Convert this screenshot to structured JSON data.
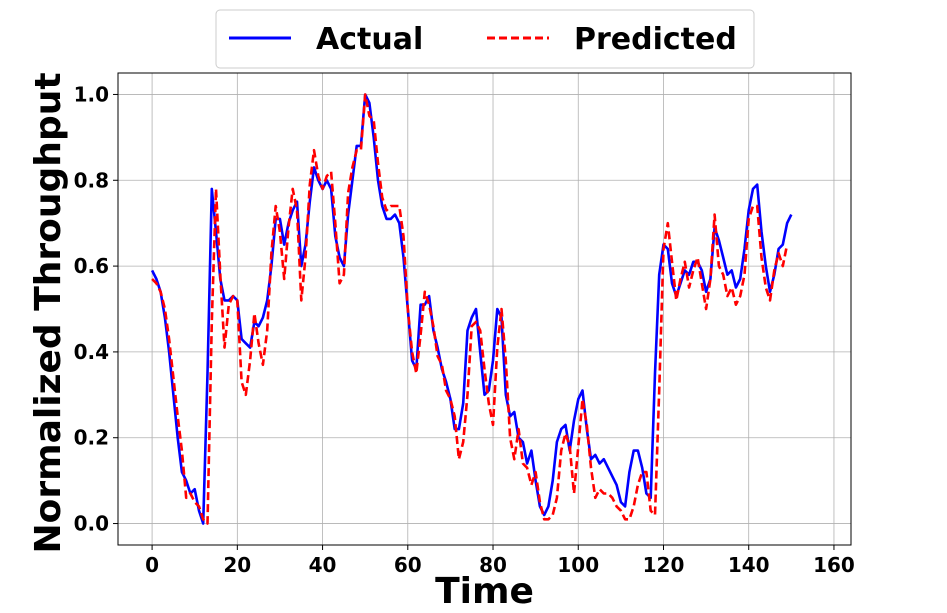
{
  "chart_data": {
    "type": "line",
    "title": "",
    "xlabel": "Time",
    "ylabel": "Normalized Throughput",
    "xlim": [
      -8,
      164
    ],
    "ylim": [
      -0.05,
      1.05
    ],
    "x_ticks": [
      0,
      20,
      40,
      60,
      80,
      100,
      120,
      140,
      160
    ],
    "x_tick_labels": [
      "0",
      "20",
      "40",
      "60",
      "80",
      "100",
      "120",
      "140",
      "160"
    ],
    "y_ticks": [
      0.0,
      0.2,
      0.4,
      0.6,
      0.8,
      1.0
    ],
    "y_tick_labels": [
      "0.0",
      "0.2",
      "0.4",
      "0.6",
      "0.8",
      "1.0"
    ],
    "grid": true,
    "legend_position": "top-center",
    "series": [
      {
        "name": "Actual",
        "color": "#0000ff",
        "style": "solid",
        "points": [
          [
            0,
            0.59
          ],
          [
            1,
            0.57
          ],
          [
            2,
            0.54
          ],
          [
            3,
            0.48
          ],
          [
            4,
            0.4
          ],
          [
            5,
            0.3
          ],
          [
            6,
            0.2
          ],
          [
            7,
            0.12
          ],
          [
            8,
            0.1
          ],
          [
            9,
            0.07
          ],
          [
            10,
            0.08
          ],
          [
            11,
            0.03
          ],
          [
            12,
            0.0
          ],
          [
            13,
            0.35
          ],
          [
            14,
            0.78
          ],
          [
            15,
            0.68
          ],
          [
            16,
            0.57
          ],
          [
            17,
            0.52
          ],
          [
            18,
            0.52
          ],
          [
            19,
            0.53
          ],
          [
            20,
            0.52
          ],
          [
            21,
            0.43
          ],
          [
            22,
            0.42
          ],
          [
            23,
            0.41
          ],
          [
            24,
            0.47
          ],
          [
            25,
            0.46
          ],
          [
            26,
            0.48
          ],
          [
            27,
            0.52
          ],
          [
            28,
            0.6
          ],
          [
            29,
            0.71
          ],
          [
            30,
            0.71
          ],
          [
            31,
            0.65
          ],
          [
            32,
            0.7
          ],
          [
            33,
            0.73
          ],
          [
            34,
            0.75
          ],
          [
            35,
            0.6
          ],
          [
            36,
            0.65
          ],
          [
            37,
            0.75
          ],
          [
            38,
            0.83
          ],
          [
            39,
            0.8
          ],
          [
            40,
            0.78
          ],
          [
            41,
            0.8
          ],
          [
            42,
            0.78
          ],
          [
            43,
            0.67
          ],
          [
            44,
            0.62
          ],
          [
            45,
            0.6
          ],
          [
            46,
            0.72
          ],
          [
            47,
            0.8
          ],
          [
            48,
            0.88
          ],
          [
            49,
            0.88
          ],
          [
            50,
            1.0
          ],
          [
            51,
            0.98
          ],
          [
            52,
            0.9
          ],
          [
            53,
            0.8
          ],
          [
            54,
            0.74
          ],
          [
            55,
            0.71
          ],
          [
            56,
            0.71
          ],
          [
            57,
            0.72
          ],
          [
            58,
            0.7
          ],
          [
            59,
            0.62
          ],
          [
            60,
            0.5
          ],
          [
            61,
            0.38
          ],
          [
            62,
            0.36
          ],
          [
            63,
            0.51
          ],
          [
            64,
            0.51
          ],
          [
            65,
            0.53
          ],
          [
            66,
            0.45
          ],
          [
            67,
            0.41
          ],
          [
            68,
            0.36
          ],
          [
            69,
            0.33
          ],
          [
            70,
            0.29
          ],
          [
            71,
            0.22
          ],
          [
            72,
            0.22
          ],
          [
            73,
            0.28
          ],
          [
            74,
            0.45
          ],
          [
            75,
            0.48
          ],
          [
            76,
            0.5
          ],
          [
            77,
            0.4
          ],
          [
            78,
            0.3
          ],
          [
            79,
            0.31
          ],
          [
            80,
            0.38
          ],
          [
            81,
            0.5
          ],
          [
            82,
            0.48
          ],
          [
            83,
            0.3
          ],
          [
            84,
            0.25
          ],
          [
            85,
            0.26
          ],
          [
            86,
            0.2
          ],
          [
            87,
            0.19
          ],
          [
            88,
            0.14
          ],
          [
            89,
            0.17
          ],
          [
            90,
            0.1
          ],
          [
            91,
            0.04
          ],
          [
            92,
            0.02
          ],
          [
            93,
            0.04
          ],
          [
            94,
            0.1
          ],
          [
            95,
            0.19
          ],
          [
            96,
            0.22
          ],
          [
            97,
            0.23
          ],
          [
            98,
            0.17
          ],
          [
            99,
            0.24
          ],
          [
            100,
            0.29
          ],
          [
            101,
            0.31
          ],
          [
            102,
            0.22
          ],
          [
            103,
            0.15
          ],
          [
            104,
            0.16
          ],
          [
            105,
            0.14
          ],
          [
            106,
            0.15
          ],
          [
            107,
            0.13
          ],
          [
            108,
            0.11
          ],
          [
            109,
            0.09
          ],
          [
            110,
            0.05
          ],
          [
            111,
            0.04
          ],
          [
            112,
            0.12
          ],
          [
            113,
            0.17
          ],
          [
            114,
            0.17
          ],
          [
            115,
            0.13
          ],
          [
            116,
            0.07
          ],
          [
            117,
            0.06
          ],
          [
            118,
            0.35
          ],
          [
            119,
            0.58
          ],
          [
            120,
            0.65
          ],
          [
            121,
            0.64
          ],
          [
            122,
            0.56
          ],
          [
            123,
            0.53
          ],
          [
            124,
            0.56
          ],
          [
            125,
            0.59
          ],
          [
            126,
            0.58
          ],
          [
            127,
            0.61
          ],
          [
            128,
            0.61
          ],
          [
            129,
            0.59
          ],
          [
            130,
            0.54
          ],
          [
            131,
            0.57
          ],
          [
            132,
            0.69
          ],
          [
            133,
            0.66
          ],
          [
            134,
            0.62
          ],
          [
            135,
            0.58
          ],
          [
            136,
            0.59
          ],
          [
            137,
            0.55
          ],
          [
            138,
            0.57
          ],
          [
            139,
            0.64
          ],
          [
            140,
            0.73
          ],
          [
            141,
            0.78
          ],
          [
            142,
            0.79
          ],
          [
            143,
            0.68
          ],
          [
            144,
            0.6
          ],
          [
            145,
            0.54
          ],
          [
            146,
            0.58
          ],
          [
            147,
            0.64
          ],
          [
            148,
            0.65
          ],
          [
            149,
            0.7
          ],
          [
            150,
            0.72
          ]
        ]
      },
      {
        "name": "Predicted",
        "color": "#ff0000",
        "style": "dashed",
        "points": [
          [
            0,
            0.57
          ],
          [
            1,
            0.56
          ],
          [
            2,
            0.54
          ],
          [
            3,
            0.5
          ],
          [
            4,
            0.43
          ],
          [
            5,
            0.34
          ],
          [
            6,
            0.25
          ],
          [
            7,
            0.17
          ],
          [
            8,
            0.06
          ],
          [
            9,
            0.07
          ],
          [
            10,
            0.05
          ],
          [
            11,
            0.04
          ],
          [
            12,
            0.01
          ],
          [
            13,
            0.0
          ],
          [
            14,
            0.47
          ],
          [
            15,
            0.78
          ],
          [
            16,
            0.58
          ],
          [
            17,
            0.41
          ],
          [
            18,
            0.51
          ],
          [
            19,
            0.53
          ],
          [
            20,
            0.52
          ],
          [
            21,
            0.33
          ],
          [
            22,
            0.3
          ],
          [
            23,
            0.38
          ],
          [
            24,
            0.49
          ],
          [
            25,
            0.42
          ],
          [
            26,
            0.37
          ],
          [
            27,
            0.45
          ],
          [
            28,
            0.63
          ],
          [
            29,
            0.74
          ],
          [
            30,
            0.68
          ],
          [
            31,
            0.57
          ],
          [
            32,
            0.69
          ],
          [
            33,
            0.78
          ],
          [
            34,
            0.73
          ],
          [
            35,
            0.52
          ],
          [
            36,
            0.62
          ],
          [
            37,
            0.79
          ],
          [
            38,
            0.87
          ],
          [
            39,
            0.81
          ],
          [
            40,
            0.78
          ],
          [
            41,
            0.81
          ],
          [
            42,
            0.82
          ],
          [
            43,
            0.7
          ],
          [
            44,
            0.56
          ],
          [
            45,
            0.58
          ],
          [
            46,
            0.77
          ],
          [
            47,
            0.83
          ],
          [
            48,
            0.87
          ],
          [
            49,
            0.87
          ],
          [
            50,
            1.0
          ],
          [
            51,
            0.95
          ],
          [
            52,
            0.94
          ],
          [
            53,
            0.84
          ],
          [
            54,
            0.76
          ],
          [
            55,
            0.73
          ],
          [
            56,
            0.74
          ],
          [
            57,
            0.74
          ],
          [
            58,
            0.74
          ],
          [
            59,
            0.67
          ],
          [
            60,
            0.5
          ],
          [
            61,
            0.4
          ],
          [
            62,
            0.35
          ],
          [
            63,
            0.44
          ],
          [
            64,
            0.54
          ],
          [
            65,
            0.51
          ],
          [
            66,
            0.46
          ],
          [
            67,
            0.39
          ],
          [
            68,
            0.37
          ],
          [
            69,
            0.31
          ],
          [
            70,
            0.29
          ],
          [
            71,
            0.25
          ],
          [
            72,
            0.15
          ],
          [
            73,
            0.19
          ],
          [
            74,
            0.3
          ],
          [
            75,
            0.46
          ],
          [
            76,
            0.47
          ],
          [
            77,
            0.45
          ],
          [
            78,
            0.36
          ],
          [
            79,
            0.28
          ],
          [
            80,
            0.23
          ],
          [
            81,
            0.41
          ],
          [
            82,
            0.5
          ],
          [
            83,
            0.38
          ],
          [
            84,
            0.2
          ],
          [
            85,
            0.15
          ],
          [
            86,
            0.22
          ],
          [
            87,
            0.14
          ],
          [
            88,
            0.13
          ],
          [
            89,
            0.09
          ],
          [
            90,
            0.12
          ],
          [
            91,
            0.05
          ],
          [
            92,
            0.01
          ],
          [
            93,
            0.01
          ],
          [
            94,
            0.02
          ],
          [
            95,
            0.06
          ],
          [
            96,
            0.17
          ],
          [
            97,
            0.21
          ],
          [
            98,
            0.18
          ],
          [
            99,
            0.07
          ],
          [
            100,
            0.18
          ],
          [
            101,
            0.29
          ],
          [
            102,
            0.23
          ],
          [
            103,
            0.13
          ],
          [
            104,
            0.06
          ],
          [
            105,
            0.08
          ],
          [
            106,
            0.07
          ],
          [
            107,
            0.07
          ],
          [
            108,
            0.06
          ],
          [
            109,
            0.04
          ],
          [
            110,
            0.03
          ],
          [
            111,
            0.01
          ],
          [
            112,
            0.01
          ],
          [
            113,
            0.04
          ],
          [
            114,
            0.09
          ],
          [
            115,
            0.12
          ],
          [
            116,
            0.12
          ],
          [
            117,
            0.03
          ],
          [
            118,
            0.02
          ],
          [
            119,
            0.31
          ],
          [
            120,
            0.64
          ],
          [
            121,
            0.7
          ],
          [
            122,
            0.61
          ],
          [
            123,
            0.52
          ],
          [
            124,
            0.57
          ],
          [
            125,
            0.61
          ],
          [
            126,
            0.55
          ],
          [
            127,
            0.59
          ],
          [
            128,
            0.62
          ],
          [
            129,
            0.56
          ],
          [
            130,
            0.5
          ],
          [
            131,
            0.57
          ],
          [
            132,
            0.72
          ],
          [
            133,
            0.6
          ],
          [
            134,
            0.58
          ],
          [
            135,
            0.53
          ],
          [
            136,
            0.55
          ],
          [
            137,
            0.51
          ],
          [
            138,
            0.53
          ],
          [
            139,
            0.58
          ],
          [
            140,
            0.71
          ],
          [
            141,
            0.74
          ],
          [
            142,
            0.74
          ],
          [
            143,
            0.62
          ],
          [
            144,
            0.55
          ],
          [
            145,
            0.52
          ],
          [
            146,
            0.59
          ],
          [
            147,
            0.63
          ],
          [
            148,
            0.6
          ],
          [
            149,
            0.65
          ]
        ]
      }
    ]
  }
}
